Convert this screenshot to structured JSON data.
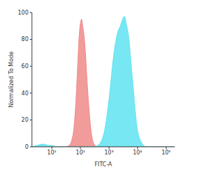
{
  "chart_data": {
    "type": "area",
    "x_label": "FITC-A",
    "y_label": "Normalized To Mode",
    "log": "x",
    "grid": false,
    "xlim": [
      2,
      200000
    ],
    "xticks": [
      {
        "value": 10,
        "label": "10¹"
      },
      {
        "value": 100,
        "label": "10²"
      },
      {
        "value": 1000,
        "label": "10³"
      },
      {
        "value": 10000,
        "label": "10⁴"
      },
      {
        "value": 100000,
        "label": "10⁵"
      }
    ],
    "ylim": [
      0,
      100
    ],
    "yticks": [
      0,
      20,
      40,
      60,
      80,
      100
    ],
    "x": [
      2,
      3,
      5,
      8,
      10,
      15,
      20,
      30,
      40,
      50,
      60,
      70,
      80,
      90,
      100,
      110,
      120,
      130,
      150,
      170,
      200,
      250,
      300,
      400,
      500,
      700,
      1000,
      1500,
      2000,
      2500,
      3000,
      3500,
      4000,
      5000,
      6000,
      7000,
      8000,
      10000,
      15000,
      20000,
      50000,
      100000,
      200000
    ],
    "series": [
      {
        "color": "#f08a8a",
        "values": [
          0,
          0,
          0,
          0,
          0,
          0,
          0,
          0,
          1,
          5,
          15,
          35,
          60,
          82,
          92,
          95,
          90,
          85,
          70,
          50,
          28,
          8,
          2,
          0,
          0,
          0,
          0,
          0,
          0,
          0,
          0,
          0,
          0,
          0,
          0,
          0,
          0,
          0,
          0,
          0,
          0,
          0,
          0
        ]
      },
      {
        "color": "#5fe3f2",
        "values": [
          0,
          1,
          2,
          1,
          1,
          0,
          0,
          0,
          0,
          0,
          0,
          0,
          0,
          0,
          0,
          0,
          0,
          0,
          0,
          0,
          0,
          0,
          0,
          1,
          3,
          12,
          35,
          70,
          85,
          90,
          95,
          97,
          92,
          80,
          60,
          45,
          30,
          12,
          2,
          0,
          0,
          0,
          0
        ]
      }
    ]
  }
}
